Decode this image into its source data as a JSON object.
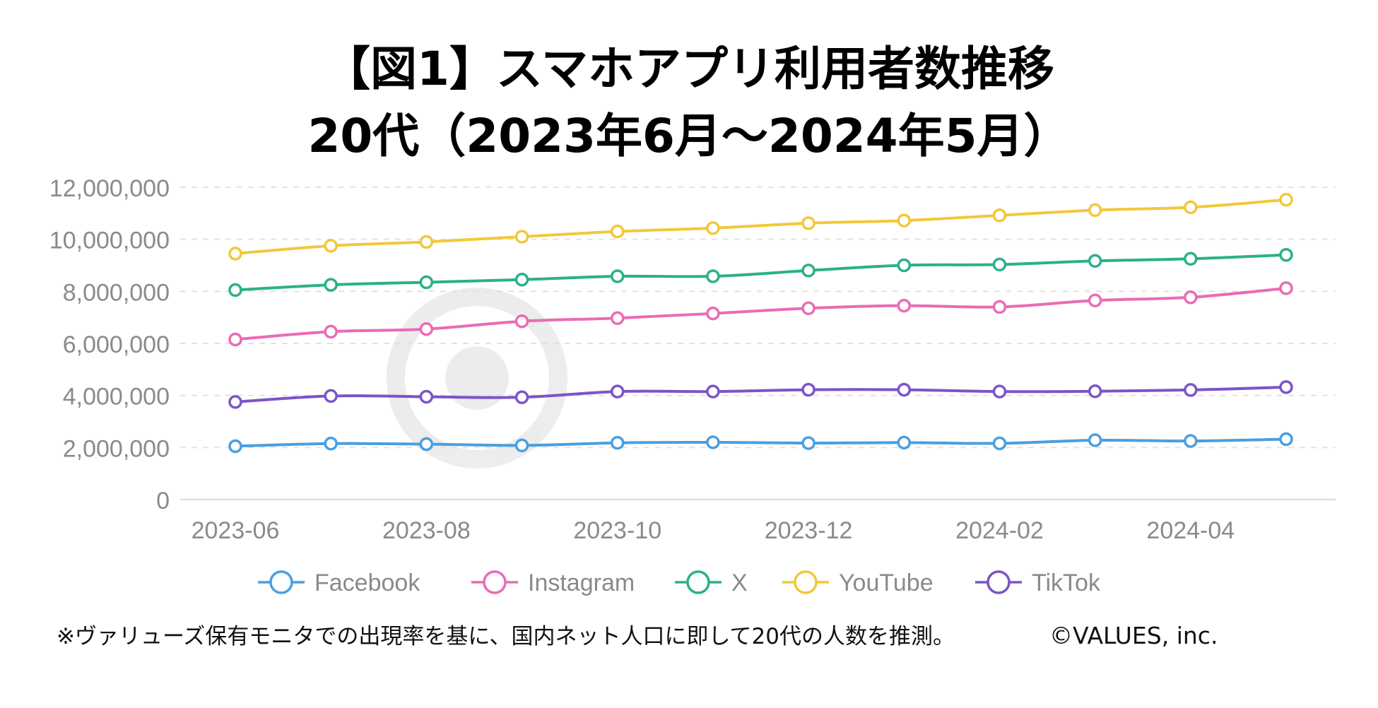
{
  "chart_data": {
    "type": "line",
    "title": [
      "【図1】スマホアプリ利用者数推移",
      "20代（2023年6月～2024年5月）"
    ],
    "x": [
      "2023-06",
      "2023-07",
      "2023-08",
      "2023-09",
      "2023-10",
      "2023-11",
      "2023-12",
      "2024-01",
      "2024-02",
      "2024-03",
      "2024-04",
      "2024-05"
    ],
    "x_tick_labels": [
      "2023-06",
      "2023-08",
      "2023-10",
      "2023-12",
      "2024-02",
      "2024-04"
    ],
    "ylim": [
      0,
      12000000
    ],
    "y_ticks": [
      0,
      2000000,
      4000000,
      6000000,
      8000000,
      10000000,
      12000000
    ],
    "y_tick_labels": [
      "0",
      "2,000,000",
      "4,000,000",
      "6,000,000",
      "8,000,000",
      "10,000,000",
      "12,000,000"
    ],
    "xlabel": "",
    "ylabel": "",
    "grid": "horizontal dashed",
    "legend_position": "bottom",
    "series": [
      {
        "name": "Facebook",
        "color": "#4a9fe0",
        "values": [
          2050000,
          2150000,
          2130000,
          2080000,
          2180000,
          2200000,
          2170000,
          2190000,
          2160000,
          2280000,
          2250000,
          2320000
        ]
      },
      {
        "name": "Instagram",
        "color": "#ea6bb5",
        "values": [
          6150000,
          6450000,
          6550000,
          6850000,
          6970000,
          7150000,
          7350000,
          7450000,
          7400000,
          7650000,
          7770000,
          8120000
        ]
      },
      {
        "name": "X",
        "color": "#2bb08a",
        "values": [
          8050000,
          8250000,
          8350000,
          8450000,
          8580000,
          8580000,
          8800000,
          9000000,
          9030000,
          9170000,
          9250000,
          9400000
        ]
      },
      {
        "name": "YouTube",
        "color": "#f2c839",
        "values": [
          9450000,
          9750000,
          9900000,
          10100000,
          10300000,
          10430000,
          10620000,
          10720000,
          10920000,
          11120000,
          11230000,
          11520000
        ]
      },
      {
        "name": "TikTok",
        "color": "#7b55c7",
        "values": [
          3750000,
          3980000,
          3950000,
          3930000,
          4150000,
          4150000,
          4220000,
          4220000,
          4150000,
          4160000,
          4210000,
          4320000
        ]
      }
    ],
    "footnote": "※ヴァリューズ保有モニタでの出現率を基に、国内ネット人口に即して20代の人数を推測。",
    "copyright": "©VALUES, inc."
  }
}
